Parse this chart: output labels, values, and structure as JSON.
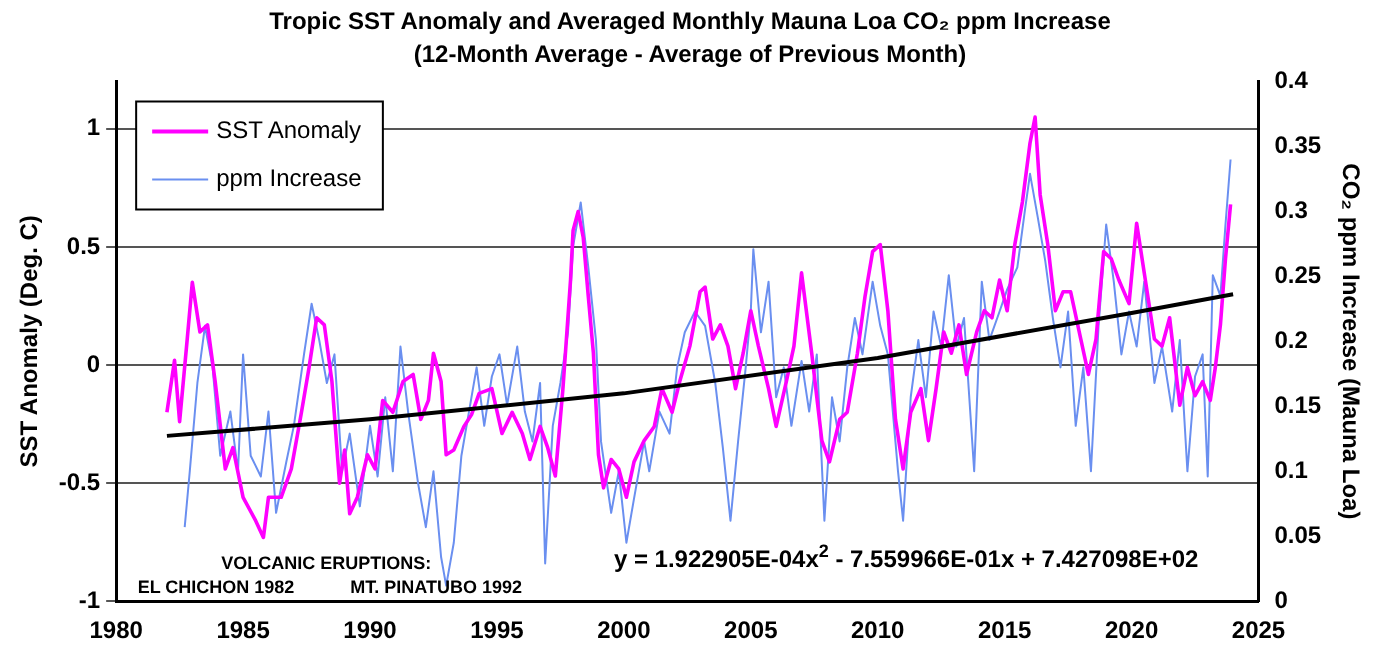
{
  "chart_data": {
    "type": "line",
    "title": "Tropic SST Anomaly and Averaged Monthly Mauna Loa CO₂ ppm Increase",
    "subtitle": "(12-Month Average - Average of Previous Month)",
    "ylabel": "SST Anomaly (Deg. C)",
    "y2label": "CO₂ ppm Increase (Mauna Loa)",
    "xlim": [
      1980,
      2025
    ],
    "xticks": [
      1980,
      1985,
      1990,
      1995,
      2000,
      2005,
      2010,
      2015,
      2020,
      2025
    ],
    "ylim": [
      -1,
      1.2
    ],
    "yticks": [
      -1,
      -0.5,
      0,
      0.5,
      1
    ],
    "y2lim": [
      0,
      0.4
    ],
    "y2ticks": [
      0,
      0.05,
      0.1,
      0.15,
      0.2,
      0.25,
      0.3,
      0.35,
      0.4
    ],
    "grid": "y",
    "legend": "top left",
    "marker": "none",
    "line_style": "solid",
    "annotations": [
      "VOLCANIC ERUPTIONS:",
      "EL CHICHON 1982",
      "MT. PINATUBO 1992",
      "y = 1.922905E-04x$^{2}$ - 7.559966E-01x + 7.427098E+02"
    ],
    "series": [
      {
        "name": "SST Anomaly",
        "color": "#ff00ff",
        "axis": "y",
        "x": [
          1982.0,
          1982.3,
          1982.5,
          1982.8,
          1983.0,
          1983.3,
          1983.6,
          1983.9,
          1984.3,
          1984.6,
          1985.0,
          1985.5,
          1985.8,
          1986.0,
          1986.5,
          1986.9,
          1987.3,
          1987.6,
          1987.9,
          1988.2,
          1988.5,
          1988.8,
          1989.0,
          1989.2,
          1989.5,
          1989.9,
          1990.2,
          1990.5,
          1990.9,
          1991.3,
          1991.7,
          1992.0,
          1992.3,
          1992.5,
          1992.8,
          1993.0,
          1993.3,
          1993.7,
          1994.0,
          1994.3,
          1994.8,
          1995.2,
          1995.6,
          1996.0,
          1996.3,
          1996.7,
          1997.0,
          1997.3,
          1997.6,
          1997.9,
          1998.0,
          1998.2,
          1998.4,
          1998.6,
          1998.8,
          1999.0,
          1999.2,
          1999.5,
          1999.8,
          2000.1,
          2000.4,
          2000.8,
          2001.2,
          2001.5,
          2001.9,
          2002.2,
          2002.6,
          2003.0,
          2003.2,
          2003.5,
          2003.8,
          2004.1,
          2004.4,
          2004.7,
          2005.0,
          2005.3,
          2005.7,
          2006.0,
          2006.4,
          2006.7,
          2007.0,
          2007.4,
          2007.8,
          2008.1,
          2008.5,
          2008.8,
          2009.2,
          2009.5,
          2009.8,
          2010.1,
          2010.4,
          2010.7,
          2011.0,
          2011.3,
          2011.7,
          2012.0,
          2012.3,
          2012.6,
          2012.9,
          2013.2,
          2013.5,
          2013.9,
          2014.2,
          2014.5,
          2014.8,
          2015.1,
          2015.4,
          2015.7,
          2016.0,
          2016.2,
          2016.4,
          2016.7,
          2017.0,
          2017.3,
          2017.6,
          2018.0,
          2018.3,
          2018.6,
          2018.9,
          2019.2,
          2019.5,
          2019.9,
          2020.2,
          2020.5,
          2020.9,
          2021.2,
          2021.5,
          2021.9,
          2022.2,
          2022.5,
          2022.8,
          2023.1,
          2023.3,
          2023.5,
          2023.7,
          2023.9
        ],
        "values": [
          -0.2,
          0.02,
          -0.24,
          0.11,
          0.35,
          0.14,
          0.17,
          -0.07,
          -0.44,
          -0.35,
          -0.56,
          -0.66,
          -0.73,
          -0.56,
          -0.56,
          -0.44,
          -0.2,
          -0.01,
          0.2,
          0.17,
          -0.07,
          -0.5,
          -0.36,
          -0.63,
          -0.56,
          -0.38,
          -0.44,
          -0.15,
          -0.2,
          -0.07,
          -0.04,
          -0.23,
          -0.15,
          0.05,
          -0.07,
          -0.38,
          -0.36,
          -0.26,
          -0.21,
          -0.12,
          -0.1,
          -0.29,
          -0.2,
          -0.29,
          -0.4,
          -0.26,
          -0.35,
          -0.47,
          -0.1,
          0.36,
          0.57,
          0.65,
          0.54,
          0.29,
          0.05,
          -0.38,
          -0.52,
          -0.4,
          -0.44,
          -0.56,
          -0.41,
          -0.32,
          -0.26,
          -0.1,
          -0.2,
          -0.07,
          0.08,
          0.31,
          0.33,
          0.11,
          0.17,
          0.08,
          -0.1,
          0.05,
          0.23,
          0.08,
          -0.1,
          -0.26,
          -0.07,
          0.08,
          0.39,
          0.05,
          -0.32,
          -0.41,
          -0.23,
          -0.2,
          0.05,
          0.29,
          0.48,
          0.51,
          0.23,
          -0.23,
          -0.44,
          -0.2,
          -0.1,
          -0.32,
          -0.1,
          0.14,
          0.05,
          0.17,
          -0.04,
          0.14,
          0.23,
          0.2,
          0.36,
          0.23,
          0.51,
          0.69,
          0.94,
          1.05,
          0.72,
          0.51,
          0.23,
          0.31,
          0.31,
          0.11,
          -0.04,
          0.11,
          0.48,
          0.45,
          0.36,
          0.26,
          0.6,
          0.39,
          0.11,
          0.08,
          0.2,
          -0.17,
          -0.01,
          -0.13,
          -0.07,
          -0.15,
          -0.01,
          0.17,
          0.45,
          0.68
        ]
      },
      {
        "name": "ppm Increase",
        "color": "#6a8ff0",
        "axis": "y2",
        "x": [
          1982.7,
          1982.9,
          1983.2,
          1983.5,
          1983.8,
          1984.1,
          1984.5,
          1984.8,
          1985.0,
          1985.3,
          1985.7,
          1986.0,
          1986.3,
          1986.7,
          1987.0,
          1987.4,
          1987.7,
          1988.0,
          1988.3,
          1988.6,
          1988.9,
          1989.2,
          1989.6,
          1990.0,
          1990.3,
          1990.6,
          1990.9,
          1991.2,
          1991.5,
          1991.9,
          1992.2,
          1992.5,
          1992.8,
          1993.0,
          1993.3,
          1993.6,
          1993.9,
          1994.2,
          1994.5,
          1994.8,
          1995.1,
          1995.4,
          1995.8,
          1996.1,
          1996.4,
          1996.7,
          1996.9,
          1997.2,
          1997.5,
          1997.8,
          1998.0,
          1998.3,
          1998.6,
          1998.9,
          1999.1,
          1999.5,
          1999.8,
          2000.1,
          2000.4,
          2000.8,
          2001.0,
          2001.4,
          2001.8,
          2002.1,
          2002.4,
          2002.8,
          2003.2,
          2003.6,
          2003.9,
          2004.2,
          2004.5,
          2004.8,
          2005.0,
          2005.1,
          2005.4,
          2005.7,
          2006.0,
          2006.3,
          2006.6,
          2007.0,
          2007.3,
          2007.6,
          2007.9,
          2008.2,
          2008.5,
          2008.8,
          2009.1,
          2009.4,
          2009.8,
          2010.1,
          2010.4,
          2010.8,
          2011.0,
          2011.3,
          2011.6,
          2011.9,
          2012.2,
          2012.5,
          2012.8,
          2013.1,
          2013.4,
          2013.8,
          2014.1,
          2014.4,
          2014.8,
          2015.1,
          2015.5,
          2015.8,
          2016.0,
          2016.3,
          2016.6,
          2016.9,
          2017.2,
          2017.5,
          2017.8,
          2018.1,
          2018.4,
          2018.7,
          2019.0,
          2019.3,
          2019.6,
          2019.9,
          2020.2,
          2020.5,
          2020.9,
          2021.2,
          2021.6,
          2021.9,
          2022.2,
          2022.5,
          2022.8,
          2023.0,
          2023.2,
          2023.5,
          2023.7,
          2023.9
        ],
        "values": [
          0.057,
          0.1,
          0.168,
          0.212,
          0.18,
          0.112,
          0.146,
          0.1,
          0.19,
          0.112,
          0.096,
          0.146,
          0.068,
          0.107,
          0.135,
          0.19,
          0.229,
          0.201,
          0.168,
          0.19,
          0.1,
          0.129,
          0.073,
          0.135,
          0.096,
          0.157,
          0.1,
          0.196,
          0.146,
          0.09,
          0.057,
          0.1,
          0.034,
          0.012,
          0.045,
          0.112,
          0.146,
          0.18,
          0.135,
          0.173,
          0.19,
          0.151,
          0.196,
          0.146,
          0.123,
          0.168,
          0.029,
          0.135,
          0.168,
          0.207,
          0.273,
          0.307,
          0.257,
          0.201,
          0.123,
          0.068,
          0.1,
          0.045,
          0.079,
          0.123,
          0.1,
          0.146,
          0.129,
          0.18,
          0.207,
          0.223,
          0.212,
          0.168,
          0.118,
          0.062,
          0.123,
          0.18,
          0.223,
          0.271,
          0.207,
          0.246,
          0.157,
          0.18,
          0.135,
          0.185,
          0.146,
          0.19,
          0.062,
          0.157,
          0.123,
          0.18,
          0.218,
          0.19,
          0.246,
          0.212,
          0.19,
          0.1,
          0.062,
          0.157,
          0.201,
          0.157,
          0.223,
          0.196,
          0.251,
          0.196,
          0.218,
          0.1,
          0.246,
          0.201,
          0.223,
          0.24,
          0.257,
          0.301,
          0.329,
          0.296,
          0.262,
          0.218,
          0.18,
          0.223,
          0.135,
          0.18,
          0.1,
          0.212,
          0.29,
          0.246,
          0.19,
          0.223,
          0.196,
          0.246,
          0.168,
          0.196,
          0.146,
          0.201,
          0.1,
          0.173,
          0.19,
          0.096,
          0.251,
          0.235,
          0.29,
          0.34
        ]
      },
      {
        "type": "line",
        "color": "#000000",
        "axis": "y",
        "x": [
          1982,
          1990,
          2000,
          2010,
          2020,
          2024
        ],
        "values": [
          -0.3,
          -0.23,
          -0.12,
          0.03,
          0.22,
          0.3
        ]
      }
    ]
  }
}
